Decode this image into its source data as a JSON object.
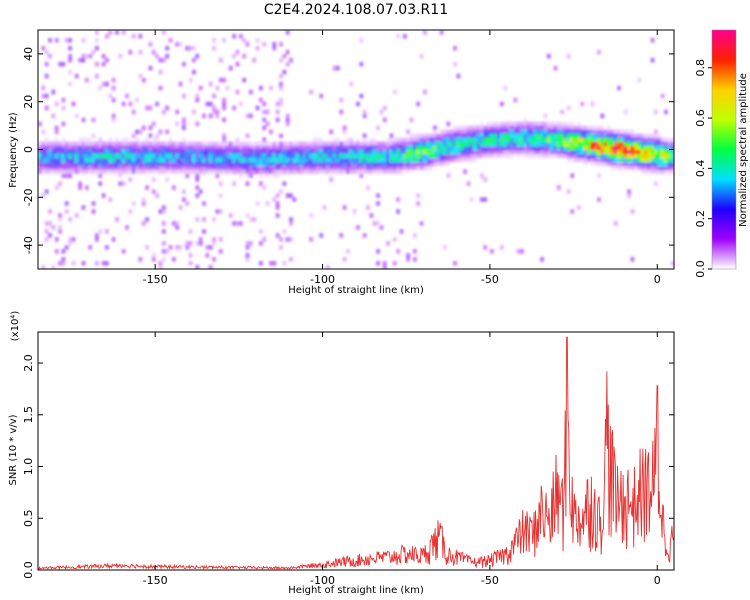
{
  "title": "C2E4.2024.108.07.03.R11",
  "chart_data": [
    {
      "type": "heatmap",
      "xlabel": "Height of straight line (km)",
      "ylabel": "Frequency (Hz)",
      "xlim": [
        -185,
        5
      ],
      "ylim": [
        -50,
        50
      ],
      "xticks": [
        -150,
        -100,
        -50,
        0
      ],
      "yticks": [
        -40,
        -20,
        0,
        20,
        40
      ],
      "colorbar": {
        "label": "Normalized spectral amplitude",
        "range": [
          0,
          0.95
        ],
        "ticks": [
          "0.0",
          "0.2",
          "0.4",
          "0.6",
          "0.8"
        ],
        "tick_values": [
          0,
          0.2,
          0.4,
          0.6,
          0.8
        ],
        "colormap": [
          "#ffffff",
          "#a000ff",
          "#2000ff",
          "#00e0ff",
          "#00ff40",
          "#c0ff00",
          "#ffd000",
          "#ff2000",
          "#ff0090"
        ]
      },
      "ridge": {
        "description_points_x": [
          -185,
          -160,
          -140,
          -120,
          -100,
          -80,
          -70,
          -60,
          -50,
          -40,
          -30,
          -20,
          -10,
          0,
          5
        ],
        "center_y": [
          -3,
          -3,
          -3,
          -4,
          -3,
          -3,
          -1,
          2,
          4,
          5,
          4,
          2,
          0,
          -2,
          -3
        ],
        "peak_amplitude": [
          0.35,
          0.38,
          0.33,
          0.36,
          0.38,
          0.4,
          0.55,
          0.45,
          0.42,
          0.45,
          0.5,
          0.75,
          0.9,
          0.7,
          0.45
        ]
      }
    },
    {
      "type": "line",
      "xlabel": "Height of straight line (km)",
      "ylabel": "SNR (10 * v/v)",
      "y_multiplier": "(x10⁴)",
      "xlim": [
        -185,
        5
      ],
      "ylim": [
        0,
        2.3
      ],
      "xticks": [
        -150,
        -100,
        -50,
        0
      ],
      "yticks": [
        "0.0",
        "0.5",
        "1.0",
        "1.5",
        "2.0"
      ],
      "ytick_values": [
        0,
        0.5,
        1.0,
        1.5,
        2.0
      ],
      "series": [
        {
          "color": "#e83030",
          "envelope_x": [
            -185,
            -170,
            -160,
            -150,
            -130,
            -110,
            -100,
            -95,
            -90,
            -85,
            -80,
            -75,
            -70,
            -67,
            -65,
            -63,
            -60,
            -55,
            -50,
            -45,
            -42,
            -40,
            -37,
            -35,
            -32,
            -30,
            -28,
            -27,
            -25,
            -22,
            -20,
            -17,
            -15,
            -12,
            -10,
            -7,
            -5,
            -3,
            -1,
            0,
            1,
            2,
            3,
            5
          ],
          "envelope_y": [
            0.03,
            0.05,
            0.07,
            0.05,
            0.04,
            0.03,
            0.08,
            0.12,
            0.15,
            0.18,
            0.2,
            0.25,
            0.22,
            0.4,
            0.52,
            0.25,
            0.2,
            0.12,
            0.15,
            0.25,
            0.45,
            0.6,
            0.55,
            0.9,
            0.75,
            1.2,
            0.9,
            2.25,
            0.8,
            0.8,
            1.1,
            0.7,
            1.9,
            1.0,
            1.1,
            1.0,
            1.2,
            1.25,
            1.3,
            1.75,
            1.1,
            0.6,
            0.35,
            0.5
          ]
        }
      ]
    }
  ]
}
